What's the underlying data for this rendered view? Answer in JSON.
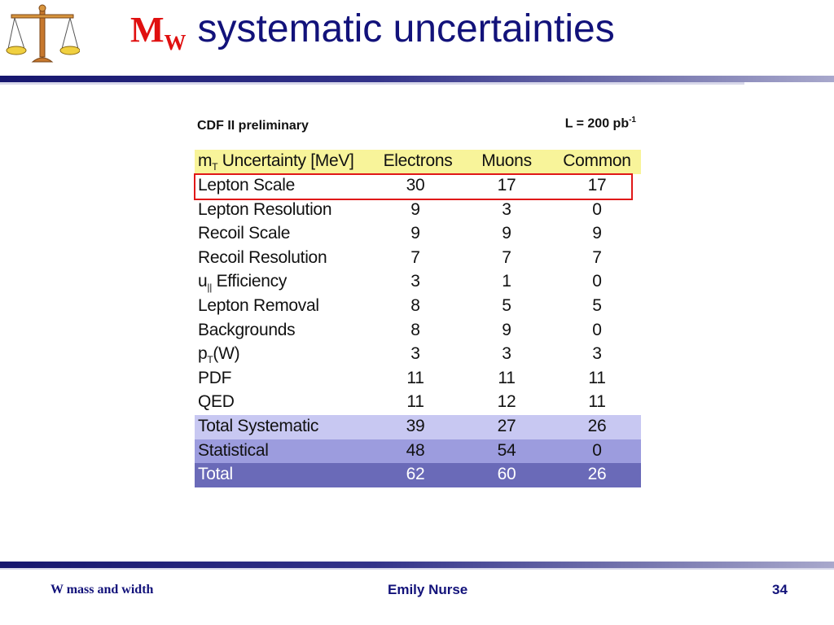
{
  "slide": {
    "title_symbol": "M",
    "title_subscript": "W",
    "title_text": "systematic uncertainties",
    "logo_icon": "scales-of-justice-icon"
  },
  "table": {
    "note_left": "CDF II preliminary",
    "note_right": "L = 200 pb",
    "note_right_sup": "-1",
    "headers": {
      "col0_main": "m",
      "col0_sub": "T",
      "col0_rest": " Uncertainty [MeV]",
      "col1": "Electrons",
      "col2": "Muons",
      "col3": "Common"
    },
    "rows": [
      {
        "label": "Lepton Scale",
        "electrons": "30",
        "muons": "17",
        "common": "17"
      },
      {
        "label": "Lepton Resolution",
        "electrons": "9",
        "muons": "3",
        "common": "0"
      },
      {
        "label": "Recoil Scale",
        "electrons": "9",
        "muons": "9",
        "common": "9"
      },
      {
        "label": "Recoil Resolution",
        "electrons": "7",
        "muons": "7",
        "common": "7"
      },
      {
        "label_main": "u",
        "label_sub": "||",
        "label_rest": " Efficiency",
        "electrons": "3",
        "muons": "1",
        "common": "0"
      },
      {
        "label": "Lepton Removal",
        "electrons": "8",
        "muons": "5",
        "common": "5"
      },
      {
        "label": "Backgrounds",
        "electrons": "8",
        "muons": "9",
        "common": "0"
      },
      {
        "label_main": "p",
        "label_sub": "T",
        "label_rest": "(W)",
        "electrons": "3",
        "muons": "3",
        "common": "3"
      },
      {
        "label": "PDF",
        "electrons": "11",
        "muons": "11",
        "common": "11"
      },
      {
        "label": "QED",
        "electrons": "11",
        "muons": "12",
        "common": "11"
      }
    ],
    "summary": [
      {
        "label": "Total Systematic",
        "electrons": "39",
        "muons": "27",
        "common": "26"
      },
      {
        "label": "Statistical",
        "electrons": "48",
        "muons": "54",
        "common": "0"
      },
      {
        "label": "Total",
        "electrons": "62",
        "muons": "60",
        "common": "26"
      }
    ],
    "colors": {
      "header_bg": "#f8f49a",
      "total_systematic_bg": "#c8c8f2",
      "statistical_bg": "#9c9cde",
      "total_bg": "#6a6ab8",
      "highlight_border": "#e01818"
    }
  },
  "footer": {
    "left": "W mass and width",
    "center": "Emily Nurse",
    "page_number": "34"
  }
}
